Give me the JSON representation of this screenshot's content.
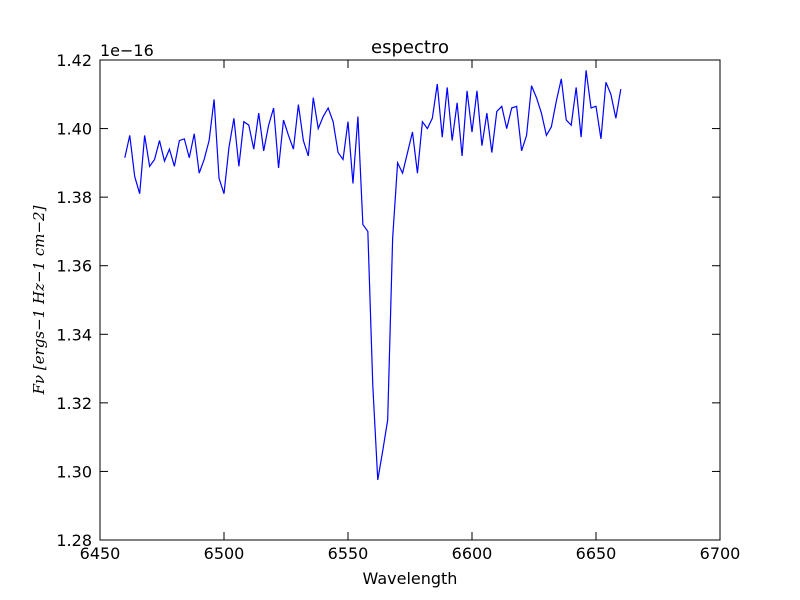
{
  "chart_data": {
    "type": "line",
    "title": "espectro",
    "xlabel": "Wavelength",
    "ylabel": "Fν [ergs−1 Hz−1 cm−2]",
    "y_offset_label": "1e−16",
    "color": "#0000ff",
    "xlim": [
      6450,
      6700
    ],
    "xticks": [
      6450,
      6500,
      6550,
      6600,
      6650,
      6700
    ],
    "ylim": [
      1.28,
      1.42
    ],
    "yticks": [
      1.28,
      {
        "value": 1.3,
        "label": "1.30"
      },
      1.32,
      1.34,
      1.36,
      1.38,
      {
        "value": 1.4,
        "label": "1.40"
      },
      1.42
    ],
    "x": [
      6460,
      6462,
      6464,
      6466,
      6468,
      6470,
      6472,
      6474,
      6476,
      6478,
      6480,
      6482,
      6484,
      6486,
      6488,
      6490,
      6492,
      6494,
      6496,
      6498,
      6500,
      6502,
      6504,
      6506,
      6508,
      6510,
      6512,
      6514,
      6516,
      6518,
      6520,
      6522,
      6524,
      6526,
      6528,
      6530,
      6532,
      6534,
      6536,
      6538,
      6540,
      6542,
      6544,
      6546,
      6548,
      6550,
      6552,
      6554,
      6556,
      6558,
      6560,
      6562,
      6564,
      6566,
      6568,
      6570,
      6572,
      6574,
      6576,
      6578,
      6580,
      6582,
      6584,
      6586,
      6588,
      6590,
      6592,
      6594,
      6596,
      6598,
      6600,
      6602,
      6604,
      6606,
      6608,
      6610,
      6612,
      6614,
      6616,
      6618,
      6620,
      6622,
      6624,
      6626,
      6628,
      6630,
      6632,
      6634,
      6636,
      6638,
      6640,
      6642,
      6644,
      6646,
      6648,
      6650,
      6652,
      6654,
      6656,
      6658,
      6660
    ],
    "values": [
      1.3915,
      1.398,
      1.386,
      1.381,
      1.398,
      1.389,
      1.391,
      1.3965,
      1.3905,
      1.394,
      1.389,
      1.3965,
      1.397,
      1.3915,
      1.3985,
      1.387,
      1.391,
      1.3965,
      1.4085,
      1.3855,
      1.381,
      1.3945,
      1.403,
      1.389,
      1.402,
      1.401,
      1.394,
      1.4045,
      1.3935,
      1.401,
      1.406,
      1.3885,
      1.4025,
      1.398,
      1.394,
      1.407,
      1.3965,
      1.392,
      1.409,
      1.4,
      1.4035,
      1.406,
      1.402,
      1.393,
      1.391,
      1.402,
      1.384,
      1.4035,
      1.372,
      1.37,
      1.325,
      1.2975,
      1.306,
      1.315,
      1.368,
      1.39,
      1.387,
      1.393,
      1.399,
      1.387,
      1.402,
      1.4,
      1.403,
      1.413,
      1.3975,
      1.412,
      1.3965,
      1.4075,
      1.392,
      1.411,
      1.399,
      1.411,
      1.395,
      1.4045,
      1.393,
      1.405,
      1.4065,
      1.4,
      1.406,
      1.4065,
      1.3935,
      1.398,
      1.4125,
      1.409,
      1.4045,
      1.398,
      1.4005,
      1.408,
      1.4145,
      1.4025,
      1.401,
      1.412,
      1.3975,
      1.417,
      1.406,
      1.4065,
      1.397,
      1.4135,
      1.41,
      1.403,
      1.4115
    ]
  }
}
